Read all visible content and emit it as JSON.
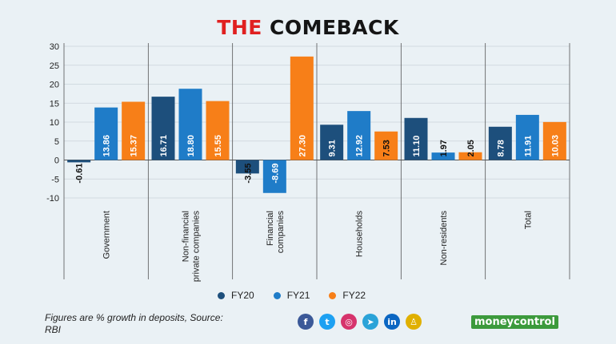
{
  "title": {
    "part1": "THE",
    "part2": "COMEBACK"
  },
  "chart_data": {
    "type": "bar",
    "title": "THE COMEBACK",
    "categories": [
      "Government",
      "Non-financial private companies",
      "Financial companies",
      "Households",
      "Non-residents",
      "Total"
    ],
    "category_labels": [
      [
        "Government"
      ],
      [
        "Non-financial",
        "private companies"
      ],
      [
        "Financial",
        "companies"
      ],
      [
        "Households"
      ],
      [
        "Non-residents"
      ],
      [
        "Total"
      ]
    ],
    "series": [
      {
        "name": "FY20",
        "color": "#1d4f7c",
        "values": [
          -0.61,
          16.71,
          -3.55,
          9.31,
          11.1,
          8.78
        ]
      },
      {
        "name": "FY21",
        "color": "#1f7cc8",
        "values": [
          13.86,
          18.8,
          -8.69,
          12.92,
          1.97,
          11.91
        ]
      },
      {
        "name": "FY22",
        "color": "#f77f18",
        "values": [
          15.37,
          15.55,
          27.3,
          7.53,
          2.05,
          10.03
        ]
      }
    ],
    "data_labels": [
      [
        "-0.61",
        "16.71",
        "-3.55",
        "9.31",
        "11.10",
        "8.78"
      ],
      [
        "13.86",
        "18.80",
        "-8.69",
        "12.92",
        "1.97",
        "11.91"
      ],
      [
        "15.37",
        "15.55",
        "27.30",
        "7.53",
        "2.05",
        "10.03"
      ]
    ],
    "ylim": [
      -10,
      30
    ],
    "yticks": [
      30,
      25,
      20,
      15,
      10,
      5,
      0,
      -5,
      -10
    ],
    "grid": true,
    "legend": "bottom",
    "xlabel": "",
    "ylabel": ""
  },
  "footnote": "Figures are % growth in deposits, Source: RBI",
  "socials": [
    {
      "icon": "facebook-icon",
      "glyph": "f",
      "color": "#3b5998"
    },
    {
      "icon": "twitter-icon",
      "glyph": "t",
      "color": "#1da1f2"
    },
    {
      "icon": "instagram-icon",
      "glyph": "◎",
      "color": "#d6336c"
    },
    {
      "icon": "telegram-icon",
      "glyph": "➤",
      "color": "#2aa3d8"
    },
    {
      "icon": "linkedin-icon",
      "glyph": "in",
      "color": "#0a66c2"
    },
    {
      "icon": "snapchat-icon",
      "glyph": "♙",
      "color": "#e0b000"
    }
  ],
  "brand": "moneycontrol"
}
